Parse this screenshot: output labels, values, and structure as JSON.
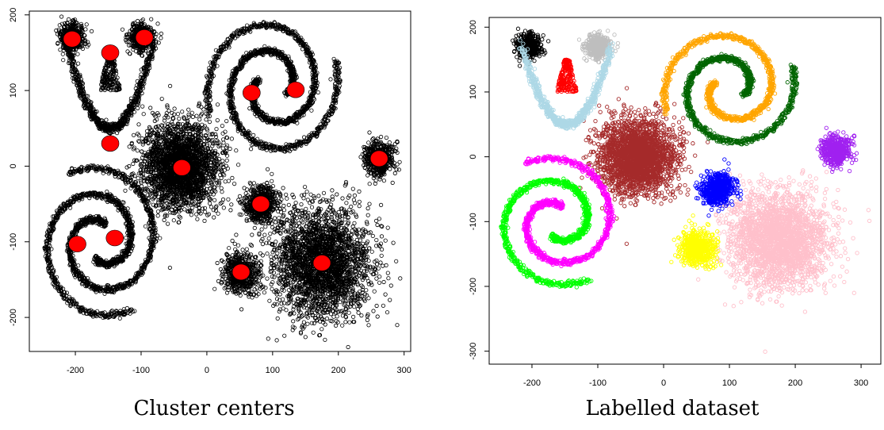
{
  "chart_data": [
    {
      "type": "scatter",
      "caption": "Cluster centers",
      "xlim": [
        -270,
        310
      ],
      "ylim": [
        -245,
        205
      ],
      "x_ticks": [
        -200,
        -100,
        0,
        100,
        200,
        300
      ],
      "y_ticks": [
        -200,
        -100,
        0,
        100,
        200
      ],
      "points_color": "#000000",
      "centers_color": "#ff0000",
      "centers": [
        {
          "x": -205,
          "y": 168
        },
        {
          "x": -95,
          "y": 170
        },
        {
          "x": -147,
          "y": 150
        },
        {
          "x": -147,
          "y": 30
        },
        {
          "x": -38,
          "y": -2
        },
        {
          "x": 68,
          "y": 97
        },
        {
          "x": 135,
          "y": 101
        },
        {
          "x": 262,
          "y": 10
        },
        {
          "x": 82,
          "y": -50
        },
        {
          "x": -197,
          "y": -103
        },
        {
          "x": -140,
          "y": -95
        },
        {
          "x": 52,
          "y": -140
        },
        {
          "x": 175,
          "y": -128
        }
      ],
      "legend": "none",
      "grid": false
    },
    {
      "type": "scatter",
      "caption": "Labelled dataset",
      "xlim": [
        -265,
        330
      ],
      "ylim": [
        -320,
        215
      ],
      "x_ticks": [
        -200,
        -100,
        0,
        100,
        200,
        300
      ],
      "y_ticks": [
        -300,
        -200,
        -100,
        0,
        100,
        200
      ],
      "clusters": [
        {
          "shape": "blob",
          "cx": -205,
          "cy": 170,
          "r": 15,
          "color": "#000000"
        },
        {
          "shape": "blob",
          "cx": -102,
          "cy": 170,
          "r": 15,
          "color": "#bebebe"
        },
        {
          "shape": "trapezoid",
          "cx": -147,
          "cy": 125,
          "color": "#ff0000"
        },
        {
          "shape": "smile",
          "cx": -147,
          "cy": 75,
          "color": "#add8e6"
        },
        {
          "shape": "blob",
          "cx": -40,
          "cy": 0,
          "r": 38,
          "color": "#a52a2a"
        },
        {
          "shape": "spiral",
          "cx": 100,
          "cy": 100,
          "color": "#ffa500"
        },
        {
          "shape": "spiral",
          "cx": 100,
          "cy": 100,
          "color": "#006400"
        },
        {
          "shape": "blob",
          "cx": 262,
          "cy": 10,
          "r": 18,
          "color": "#a020f0"
        },
        {
          "shape": "blob",
          "cx": 85,
          "cy": -50,
          "r": 20,
          "color": "#0000ff"
        },
        {
          "shape": "blob",
          "cx": 52,
          "cy": -140,
          "r": 20,
          "color": "#ffff00"
        },
        {
          "shape": "blob",
          "cx": 182,
          "cy": -125,
          "r": 48,
          "color": "#ffc0cb"
        },
        {
          "shape": "spiral",
          "cx": -160,
          "cy": -100,
          "color": "#00ff00"
        },
        {
          "shape": "spiral",
          "cx": -160,
          "cy": -100,
          "color": "#ff00ff"
        }
      ],
      "legend": "none",
      "grid": false
    }
  ]
}
